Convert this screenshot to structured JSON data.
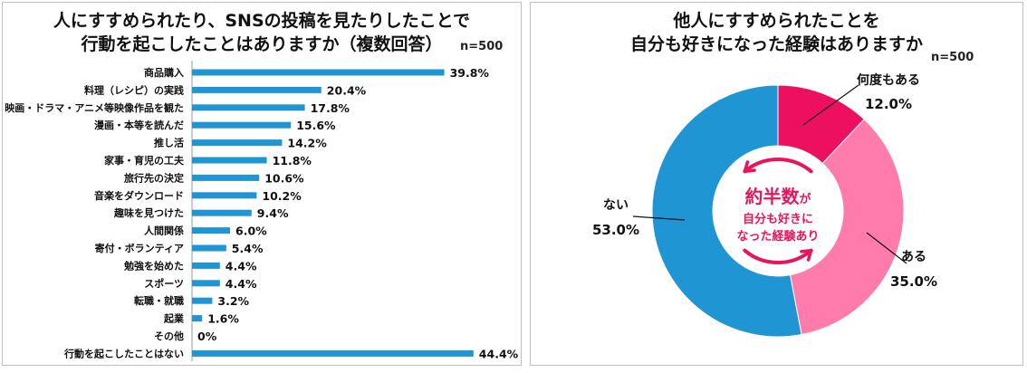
{
  "left": {
    "title_line1": "人にすすめられたり、SNSの投稿を見たりしたことで",
    "title_line2": "行動を起こしたことはありますか（複数回答）",
    "n_label": "n=500"
  },
  "right": {
    "title_line1": "他人にすすめられたことを",
    "title_line2": "自分も好きになった経験はありますか",
    "n_label": "n=500",
    "center_big": "約半数",
    "center_small_suffix": "が",
    "center_line2": "自分も好きに",
    "center_line3": "なった経験あり"
  },
  "colors": {
    "bar": "#1f96d3",
    "pie_often": "#ee1060",
    "pie_yes": "#ff7bab",
    "pie_no": "#1f96d3",
    "center_text": "#e8155e"
  },
  "chart_data": [
    {
      "type": "bar",
      "orientation": "horizontal",
      "title": "人にすすめられたり、SNSの投稿を見たりしたことで行動を起こしたことはありますか（複数回答）",
      "categories": [
        "商品購入",
        "料理（レシピ）の実践",
        "映画・ドラマ・アニメ等映像作品を観た",
        "漫画・本等を読んだ",
        "推し活",
        "家事・育児の工夫",
        "旅行先の決定",
        "音楽をダウンロード",
        "趣味を見つけた",
        "人間関係",
        "寄付・ボランティア",
        "勉強を始めた",
        "スポーツ",
        "転職・就職",
        "起業",
        "その他",
        "行動を起こしたことはない"
      ],
      "values": [
        39.8,
        20.4,
        17.8,
        15.6,
        14.2,
        11.8,
        10.6,
        10.2,
        9.4,
        6.0,
        5.4,
        4.4,
        4.4,
        3.2,
        1.6,
        0,
        44.4
      ],
      "value_labels": [
        "39.8%",
        "20.4%",
        "17.8%",
        "15.6%",
        "14.2%",
        "11.8%",
        "10.6%",
        "10.2%",
        "9.4%",
        "6.0%",
        "5.4%",
        "4.4%",
        "4.4%",
        "3.2%",
        "1.6%",
        "0%",
        "44.4%"
      ],
      "unit": "%",
      "xlim": [
        0,
        50
      ]
    },
    {
      "type": "pie",
      "style": "donut",
      "title": "他人にすすめられたことを自分も好きになった経験はありますか",
      "labels": [
        "何度もある",
        "ある",
        "ない"
      ],
      "values": [
        12.0,
        35.0,
        53.0
      ],
      "value_labels": [
        "12.0%",
        "35.0%",
        "53.0%"
      ]
    }
  ]
}
